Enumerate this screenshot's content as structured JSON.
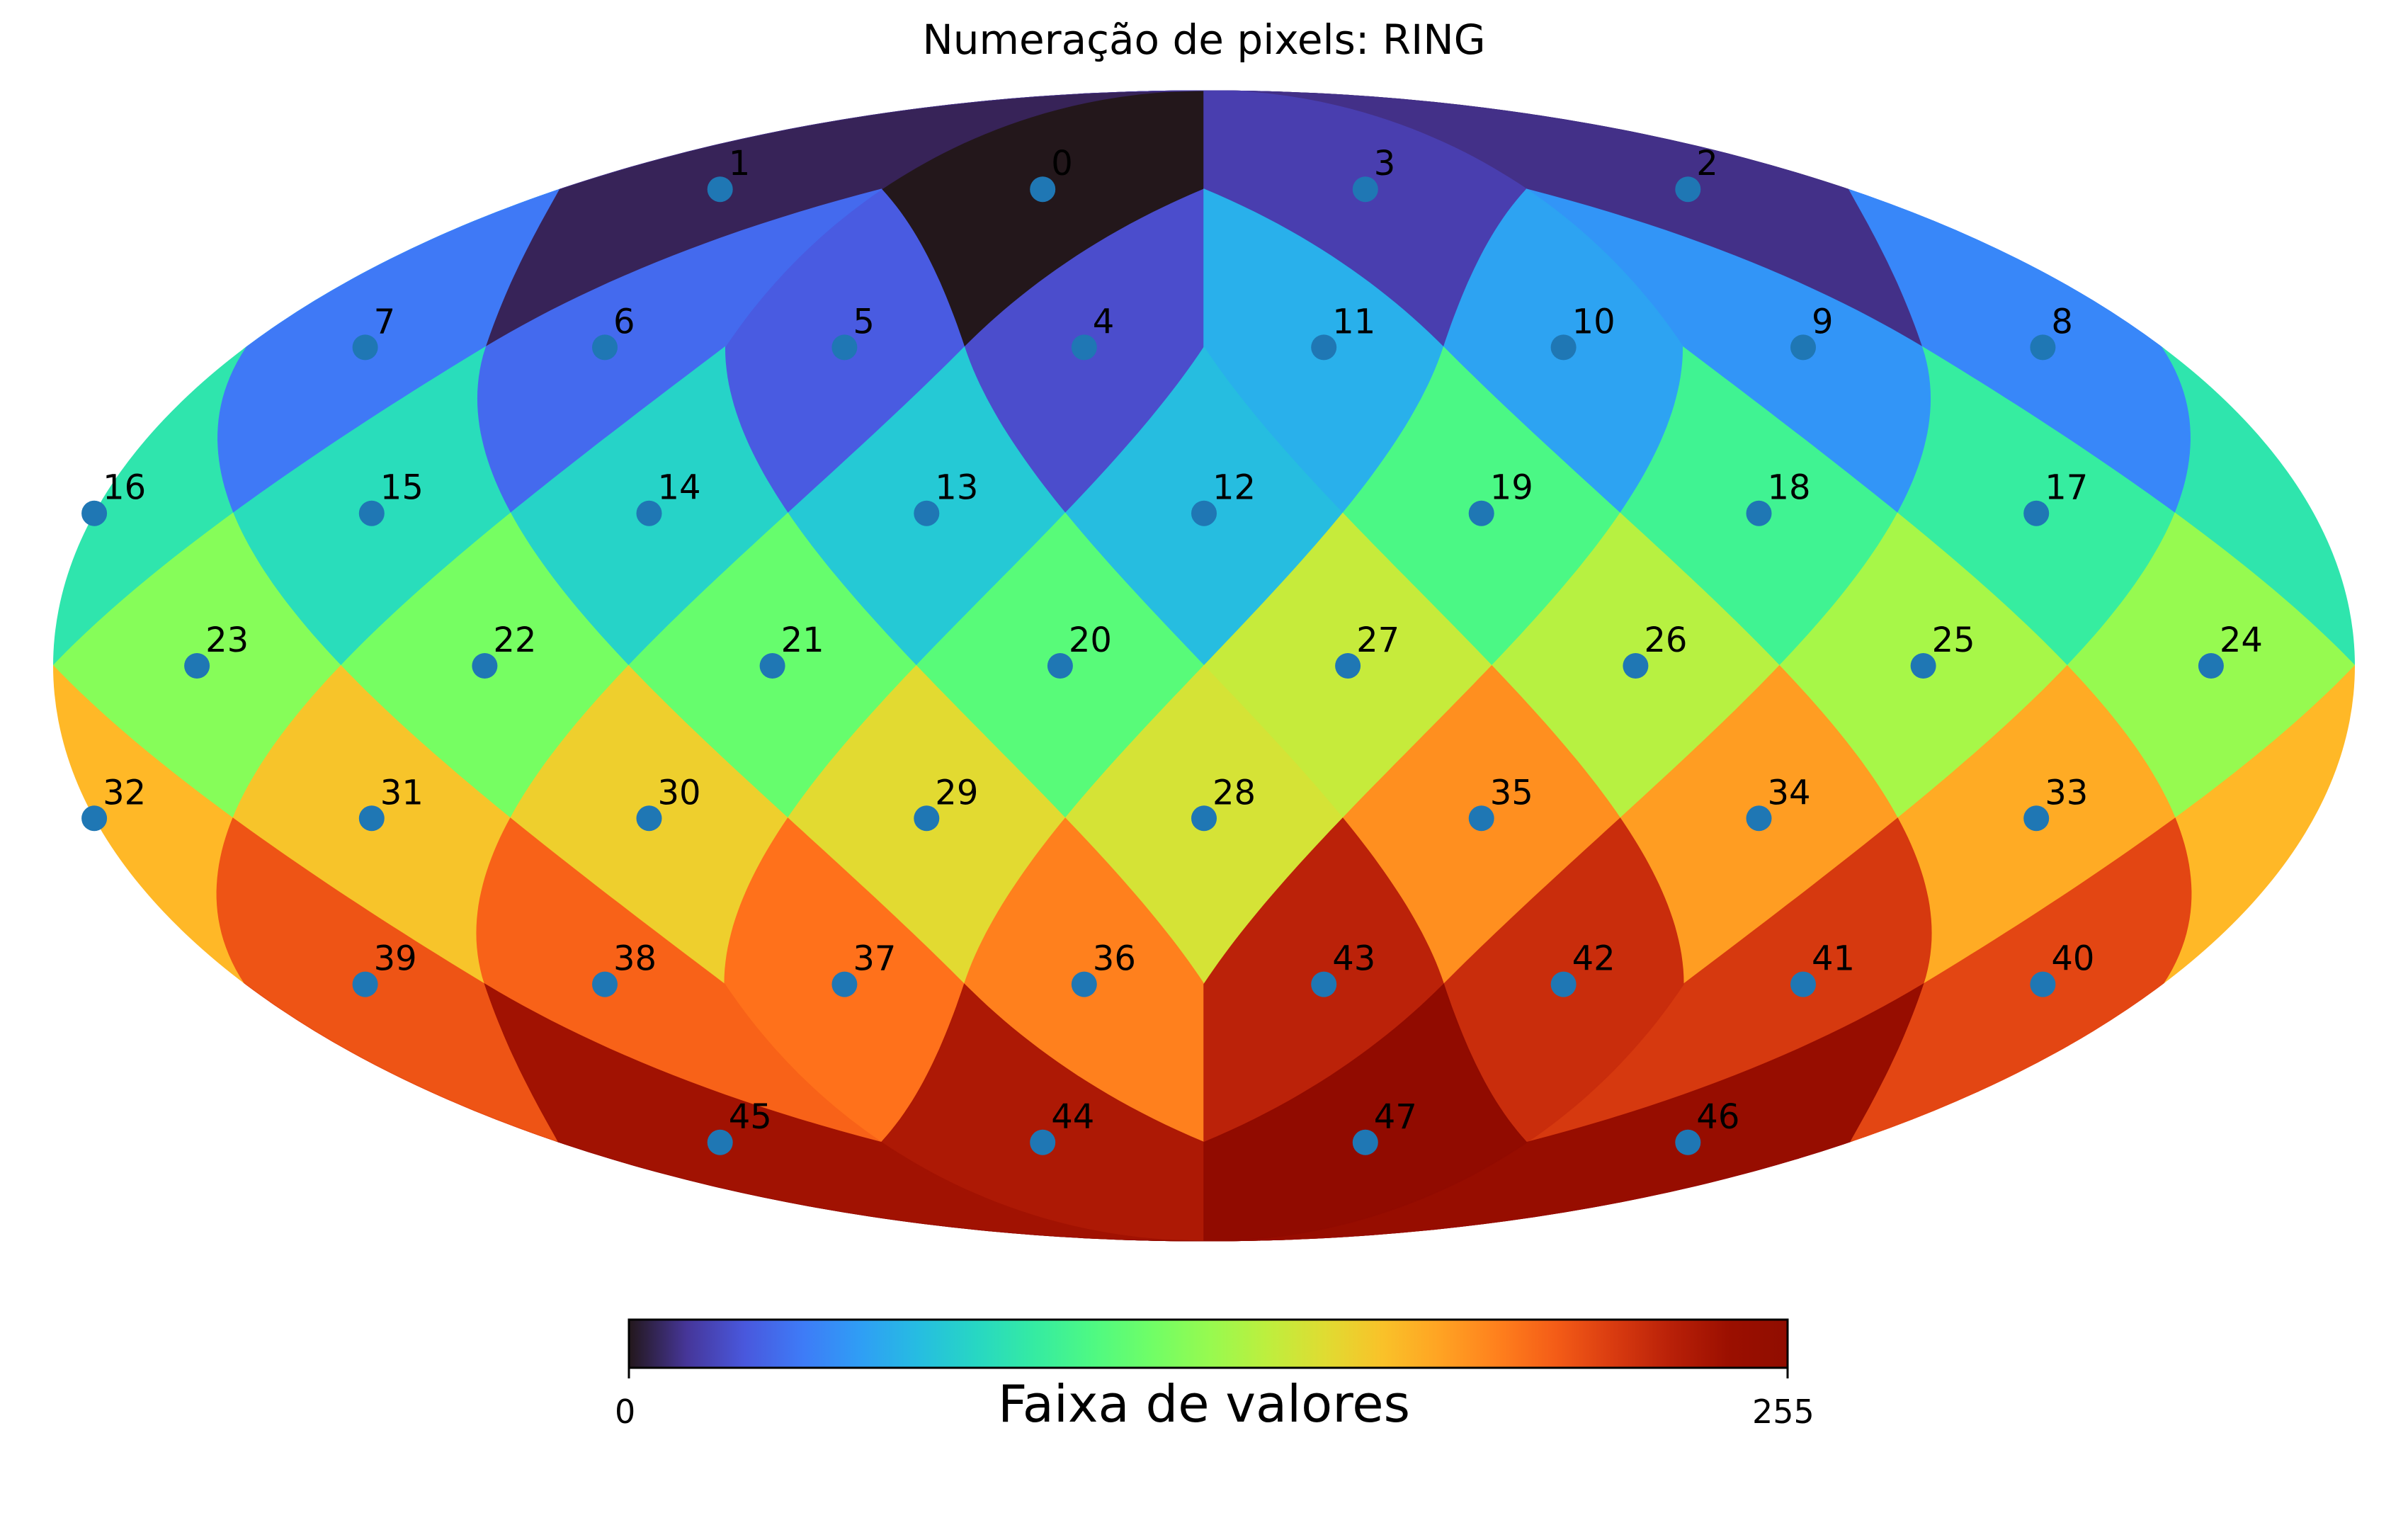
{
  "title": "Numeração de pixels: RING",
  "colorbar": {
    "label": "Faixa de valores",
    "min_label": "0",
    "max_label": "255",
    "colormap": "turbo",
    "range": [
      0,
      255
    ]
  },
  "chart_data": {
    "type": "heatmap",
    "projection": "mollweide",
    "scheme": "RING",
    "nside": 2,
    "npix": 48,
    "pixel_values": [
      0,
      5.3,
      10.6,
      15.9,
      21.3,
      26.6,
      31.9,
      37.2,
      42.5,
      47.8,
      53.1,
      58.4,
      63.8,
      69.1,
      74.4,
      79.7,
      85,
      90.3,
      95.6,
      100.9,
      106.3,
      111.6,
      116.9,
      122.2,
      127.5,
      132.8,
      138.1,
      143.4,
      148.8,
      154.1,
      159.4,
      164.7,
      170,
      175.3,
      180.6,
      185.9,
      191.3,
      196.6,
      201.9,
      207.2,
      212.5,
      217.8,
      223.1,
      228.4,
      233.8,
      239.1,
      244.4,
      249.7
    ],
    "pixel_labels": [
      "0",
      "1",
      "2",
      "3",
      "4",
      "5",
      "6",
      "7",
      "8",
      "9",
      "10",
      "11",
      "12",
      "13",
      "14",
      "15",
      "16",
      "17",
      "18",
      "19",
      "20",
      "21",
      "22",
      "23",
      "24",
      "25",
      "26",
      "27",
      "28",
      "29",
      "30",
      "31",
      "32",
      "33",
      "34",
      "35",
      "36",
      "37",
      "38",
      "39",
      "40",
      "41",
      "42",
      "43",
      "44",
      "45",
      "46",
      "47"
    ],
    "marker_color": "#1f77b4"
  }
}
